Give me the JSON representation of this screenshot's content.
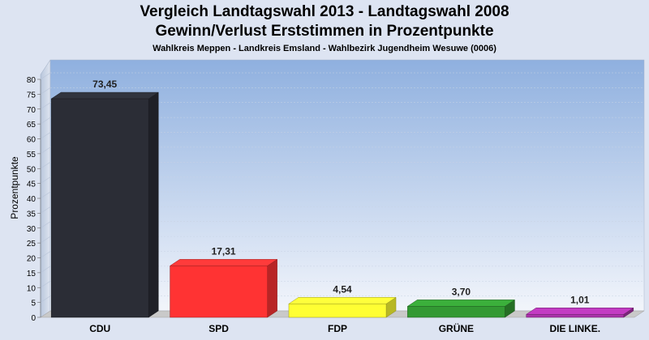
{
  "chart_data": {
    "type": "bar",
    "title": "Vergleich Landtagswahl 2013 - Landtagswahl 2008",
    "subtitle_line2": "Gewinn/Verlust Erststimmen in Prozentpunkte",
    "subtitle": "Wahlkreis Meppen - Landkreis Emsland - Wahlbezirk Jugendheim Wesuwe (0006)",
    "ylabel": "Prozentpunkte",
    "xlabel": "",
    "ylim": [
      0,
      80
    ],
    "yticks": [
      0,
      5,
      10,
      15,
      20,
      25,
      30,
      35,
      40,
      45,
      50,
      55,
      60,
      65,
      70,
      75,
      80
    ],
    "categories": [
      "CDU",
      "SPD",
      "FDP",
      "GRÜNE",
      "DIE LINKE."
    ],
    "values": [
      73.45,
      17.31,
      4.54,
      3.7,
      1.01
    ],
    "value_labels": [
      "73,45",
      "17,31",
      "4,54",
      "3,70",
      "1,01"
    ],
    "colors": [
      "#2b2d36",
      "#ff3333",
      "#ffff33",
      "#339933",
      "#aa33aa"
    ],
    "grid": true,
    "legend": "none"
  }
}
